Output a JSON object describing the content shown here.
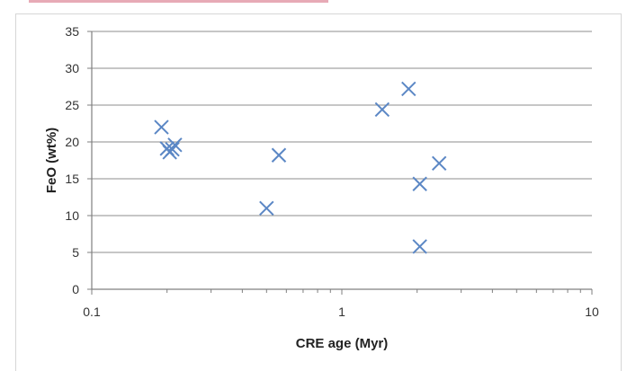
{
  "chart_data": {
    "type": "scatter",
    "title": "",
    "xlabel": "CRE age (Myr)",
    "ylabel": "FeO (wt%)",
    "xscale": "log",
    "xlim": [
      0.1,
      10
    ],
    "ylim": [
      0,
      35
    ],
    "x_ticks": [
      "0.1",
      "1",
      "10"
    ],
    "y_ticks": [
      "0",
      "5",
      "10",
      "15",
      "20",
      "25",
      "30",
      "35"
    ],
    "grid": "horizontal",
    "marker": "x",
    "color": "#5b87c5",
    "points": [
      {
        "x": 0.19,
        "y": 22.0
      },
      {
        "x": 0.2,
        "y": 19.1
      },
      {
        "x": 0.205,
        "y": 18.6
      },
      {
        "x": 0.215,
        "y": 19.6
      },
      {
        "x": 0.21,
        "y": 19.0
      },
      {
        "x": 0.5,
        "y": 11.0
      },
      {
        "x": 0.56,
        "y": 18.2
      },
      {
        "x": 1.45,
        "y": 24.4
      },
      {
        "x": 1.85,
        "y": 27.2
      },
      {
        "x": 2.05,
        "y": 14.3
      },
      {
        "x": 2.05,
        "y": 5.8
      },
      {
        "x": 2.45,
        "y": 17.1
      }
    ]
  }
}
